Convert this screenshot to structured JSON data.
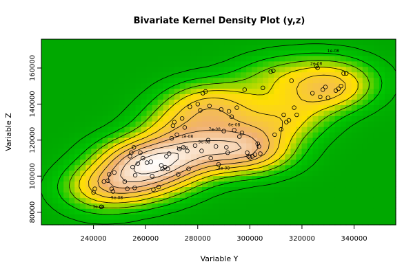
{
  "chart_data": {
    "type": "heatmap",
    "subtype": "bivariate-kernel-density-with-contours-and-scatter",
    "title": "Bivariate Kernel Density Plot (y,z)",
    "xlabel": "Variable Y",
    "ylabel": "Variable Z",
    "xlim": [
      220000,
      356000
    ],
    "ylim": [
      73000,
      176000
    ],
    "x_ticks": [
      {
        "value": 240000,
        "label": "240000"
      },
      {
        "value": 260000,
        "label": "260000"
      },
      {
        "value": 280000,
        "label": "280000"
      },
      {
        "value": 300000,
        "label": "300000"
      },
      {
        "value": 320000,
        "label": "320000"
      },
      {
        "value": 340000,
        "label": "340000"
      }
    ],
    "y_ticks": [
      {
        "value": 80000,
        "label": "80000"
      },
      {
        "value": 100000,
        "label": "100000"
      },
      {
        "value": 120000,
        "label": "120000"
      },
      {
        "value": 140000,
        "label": "140000"
      },
      {
        "value": 160000,
        "label": "160000"
      }
    ],
    "colors": {
      "low": "#00a800",
      "mid_low": "#00c800",
      "mid": "#ffe000",
      "high": "#f0b070",
      "peak": "#ffffff",
      "contour": "#000000",
      "point": "#000000"
    },
    "contour_levels": [
      1e-10,
      3e-10,
      5e-10,
      7e-10,
      9e-10,
      1.1e-09,
      1.3e-09,
      1.5e-09,
      1.7e-09
    ],
    "contour_labels": [
      {
        "text": "1e-08",
        "x": 332000,
        "y": 169500
      },
      {
        "text": "2e-08",
        "x": 325500,
        "y": 162500
      },
      {
        "text": "6e-08",
        "x": 294000,
        "y": 128500
      },
      {
        "text": "7e-08",
        "x": 286500,
        "y": 126000
      },
      {
        "text": "1e-08",
        "x": 276000,
        "y": 122000
      },
      {
        "text": "9e-08",
        "x": 282500,
        "y": 119000
      },
      {
        "text": "1e-08",
        "x": 274000,
        "y": 115500
      },
      {
        "text": "4e-08",
        "x": 290000,
        "y": 104500
      },
      {
        "text": "5e-08",
        "x": 249000,
        "y": 88000
      },
      {
        "text": "3e-08",
        "x": 242000,
        "y": 83000
      }
    ],
    "points": [
      [
        240000,
        91000
      ],
      [
        240500,
        93000
      ],
      [
        243000,
        83000
      ],
      [
        244000,
        97000
      ],
      [
        245500,
        97500
      ],
      [
        246000,
        101000
      ],
      [
        247000,
        93000
      ],
      [
        248000,
        102000
      ],
      [
        247500,
        91500
      ],
      [
        252000,
        97000
      ],
      [
        253000,
        93000
      ],
      [
        254000,
        111000
      ],
      [
        254500,
        113000
      ],
      [
        255000,
        105000
      ],
      [
        255500,
        116000
      ],
      [
        255800,
        93500
      ],
      [
        256000,
        100500
      ],
      [
        257000,
        107000
      ],
      [
        258000,
        113000
      ],
      [
        259000,
        110000
      ],
      [
        260500,
        107500
      ],
      [
        262000,
        108000
      ],
      [
        262500,
        100000
      ],
      [
        263000,
        92500
      ],
      [
        265000,
        94000
      ],
      [
        266000,
        106000
      ],
      [
        266500,
        104000
      ],
      [
        267500,
        105000
      ],
      [
        268000,
        111000
      ],
      [
        268500,
        104000
      ],
      [
        269000,
        112500
      ],
      [
        270000,
        121000
      ],
      [
        270500,
        128000
      ],
      [
        271000,
        130000
      ],
      [
        272000,
        123000
      ],
      [
        272500,
        101000
      ],
      [
        273000,
        115000
      ],
      [
        274000,
        132000
      ],
      [
        274500,
        116000
      ],
      [
        275000,
        127000
      ],
      [
        276000,
        114000
      ],
      [
        276500,
        104000
      ],
      [
        277000,
        138500
      ],
      [
        279000,
        117000
      ],
      [
        280000,
        140000
      ],
      [
        281000,
        136500
      ],
      [
        281500,
        114000
      ],
      [
        282000,
        146000
      ],
      [
        283000,
        147000
      ],
      [
        284000,
        120000
      ],
      [
        284500,
        139000
      ],
      [
        285000,
        110000
      ],
      [
        287000,
        116500
      ],
      [
        288000,
        106500
      ],
      [
        289000,
        137000
      ],
      [
        290000,
        125000
      ],
      [
        291000,
        116000
      ],
      [
        291500,
        113000
      ],
      [
        292000,
        136000
      ],
      [
        293000,
        133000
      ],
      [
        294000,
        125500
      ],
      [
        295000,
        138000
      ],
      [
        296000,
        122000
      ],
      [
        297000,
        124000
      ],
      [
        298000,
        148000
      ],
      [
        299000,
        113000
      ],
      [
        299500,
        111000
      ],
      [
        300000,
        110500
      ],
      [
        301000,
        111000
      ],
      [
        302000,
        112000
      ],
      [
        303000,
        118000
      ],
      [
        303500,
        116500
      ],
      [
        304000,
        112500
      ],
      [
        305000,
        149000
      ],
      [
        308000,
        158000
      ],
      [
        309000,
        158500
      ],
      [
        309500,
        123000
      ],
      [
        312000,
        126000
      ],
      [
        313000,
        134000
      ],
      [
        314000,
        130000
      ],
      [
        315000,
        131000
      ],
      [
        316000,
        153000
      ],
      [
        317000,
        138000
      ],
      [
        318000,
        134000
      ],
      [
        324000,
        146000
      ],
      [
        325500,
        161000
      ],
      [
        326000,
        160000
      ],
      [
        327000,
        144000
      ],
      [
        328000,
        148000
      ],
      [
        329000,
        149500
      ],
      [
        330000,
        143500
      ],
      [
        333000,
        147500
      ],
      [
        334000,
        148500
      ],
      [
        335000,
        150000
      ],
      [
        336000,
        157000
      ],
      [
        337000,
        157000
      ]
    ]
  }
}
